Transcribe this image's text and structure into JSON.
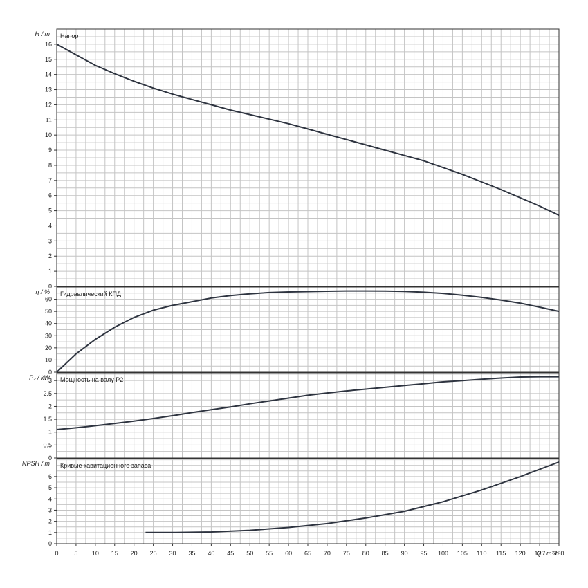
{
  "chart_data": [
    {
      "type": "line",
      "title": "Напор",
      "ylabel": "H / m",
      "xlim": [
        0,
        130
      ],
      "ylim": [
        0,
        17
      ],
      "yticks": [
        0,
        1,
        2,
        3,
        4,
        5,
        6,
        7,
        8,
        9,
        10,
        11,
        12,
        13,
        14,
        15,
        16
      ],
      "series": [
        {
          "x": [
            0,
            5,
            10,
            15,
            20,
            25,
            30,
            35,
            40,
            45,
            50,
            55,
            60,
            65,
            70,
            75,
            80,
            85,
            90,
            95,
            100,
            105,
            110,
            115,
            120,
            125,
            130
          ],
          "y": [
            16.0,
            15.3,
            14.6,
            14.05,
            13.55,
            13.1,
            12.7,
            12.35,
            12.0,
            11.65,
            11.35,
            11.05,
            10.75,
            10.4,
            10.05,
            9.7,
            9.35,
            9.0,
            8.65,
            8.3,
            7.85,
            7.4,
            6.9,
            6.4,
            5.85,
            5.3,
            4.7
          ]
        }
      ]
    },
    {
      "type": "line",
      "title": "Гидравлический КПД",
      "ylabel": "η / %",
      "xlim": [
        0,
        130
      ],
      "ylim": [
        0,
        70
      ],
      "yticks": [
        0,
        10,
        20,
        30,
        40,
        50,
        60
      ],
      "series": [
        {
          "x": [
            0,
            5,
            10,
            15,
            20,
            25,
            30,
            35,
            40,
            45,
            50,
            55,
            60,
            65,
            70,
            75,
            80,
            85,
            90,
            95,
            100,
            105,
            110,
            115,
            120,
            125,
            130
          ],
          "y": [
            0,
            15,
            27,
            37,
            45,
            51,
            55,
            58,
            61,
            63,
            64.5,
            65.5,
            66,
            66.3,
            66.6,
            66.8,
            66.8,
            66.7,
            66.4,
            65.8,
            64.8,
            63.3,
            61.5,
            59.3,
            56.8,
            53.5,
            50
          ]
        }
      ]
    },
    {
      "type": "line",
      "title": "Мощность на валу P2",
      "ylabel": "P₂ / kW",
      "xlim": [
        0,
        130
      ],
      "ylim": [
        0,
        3.3
      ],
      "yticks": [
        0,
        0.5,
        1,
        1.5,
        2,
        2.5,
        3
      ],
      "series": [
        {
          "x": [
            0,
            5,
            10,
            15,
            20,
            25,
            30,
            35,
            40,
            45,
            50,
            55,
            60,
            65,
            70,
            75,
            80,
            85,
            90,
            95,
            100,
            105,
            110,
            115,
            120,
            125,
            130
          ],
          "y": [
            1.1,
            1.17,
            1.25,
            1.34,
            1.43,
            1.53,
            1.64,
            1.76,
            1.87,
            1.98,
            2.1,
            2.21,
            2.32,
            2.43,
            2.52,
            2.6,
            2.67,
            2.74,
            2.81,
            2.88,
            2.95,
            3.0,
            3.05,
            3.1,
            3.14,
            3.15,
            3.15
          ]
        }
      ]
    },
    {
      "type": "line",
      "title": "Кривые кавитационного запаса",
      "ylabel": "NPSH / m",
      "xlabel": "Q / m³/h",
      "xlim": [
        0,
        130
      ],
      "ylim": [
        0,
        7.6
      ],
      "yticks": [
        0,
        1,
        2,
        3,
        4,
        5,
        6
      ],
      "xticks": [
        0,
        5,
        10,
        15,
        20,
        25,
        30,
        35,
        40,
        45,
        50,
        55,
        60,
        65,
        70,
        75,
        80,
        85,
        90,
        95,
        100,
        105,
        110,
        115,
        120,
        125,
        130
      ],
      "series": [
        {
          "x": [
            23,
            30,
            40,
            50,
            60,
            70,
            80,
            90,
            100,
            110,
            120,
            130
          ],
          "y": [
            1.0,
            1.0,
            1.05,
            1.2,
            1.45,
            1.8,
            2.3,
            2.9,
            3.75,
            4.8,
            6.0,
            7.3
          ]
        }
      ]
    }
  ]
}
